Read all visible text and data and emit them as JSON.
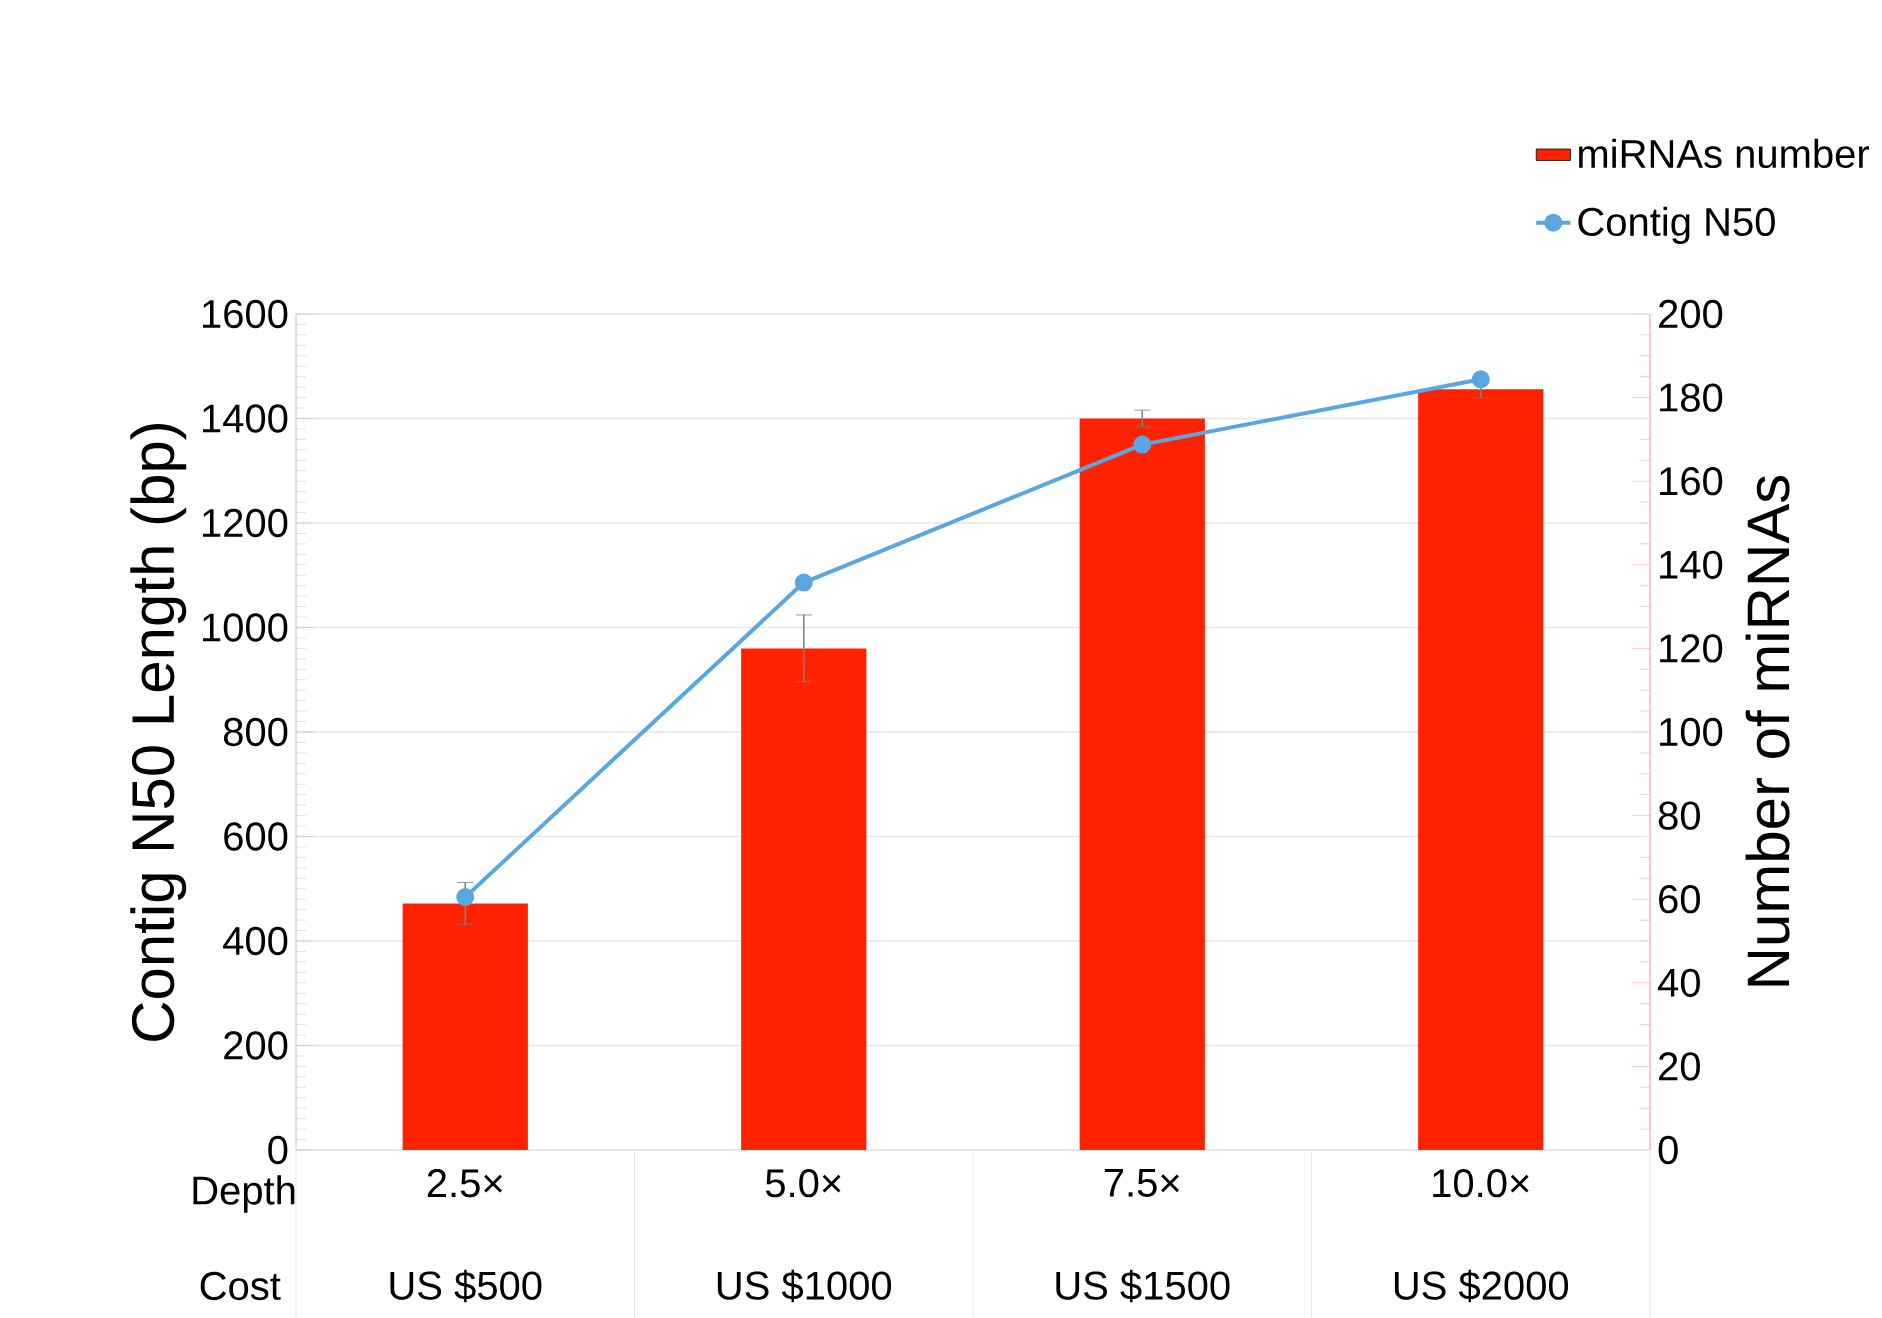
{
  "chart_data": {
    "type": "bar",
    "ylabel": "Contig N50 Length (bp)",
    "y2label": "Number of miRNAs",
    "categories": [
      "2.5×",
      "5.0×",
      "7.5×",
      "10.0×"
    ],
    "annotations": [
      "Depth",
      "Cost",
      "US $500",
      "US $1000",
      "US $1500",
      "US $2000"
    ],
    "series": [
      {
        "name": "miRNAs number",
        "axis": "y2",
        "color": "#ff2200",
        "values": [
          59,
          120,
          175,
          182
        ],
        "errors": [
          5,
          8,
          2,
          2
        ]
      },
      {
        "name": "Contig N50",
        "type": "line",
        "color": "#5aa6e0",
        "values": [
          484,
          1086,
          1350,
          1475
        ]
      }
    ],
    "marker": "circle",
    "ylim": [
      0,
      1600
    ],
    "yticks": [
      0,
      200,
      400,
      600,
      800,
      1000,
      1200,
      1400,
      1600
    ],
    "y2lim": [
      0,
      200
    ],
    "y2ticks": [
      0,
      20,
      40,
      60,
      80,
      100,
      120,
      140,
      160,
      180,
      200
    ],
    "grid": "y",
    "legend": "top right"
  }
}
